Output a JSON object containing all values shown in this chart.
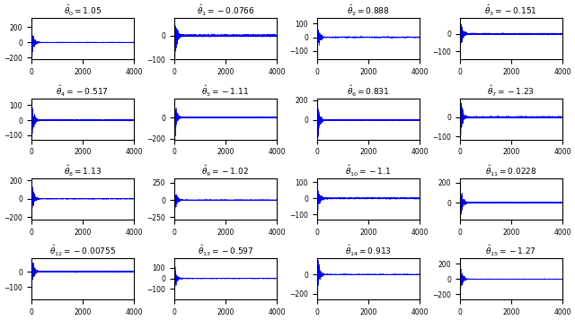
{
  "n_params": 16,
  "n_iter": 4000,
  "titles": [
    "\\hat{\\theta}_0 = 1.05",
    "\\hat{\\theta}_1 = -0.0766",
    "\\hat{\\theta}_2 = 0.888",
    "\\hat{\\theta}_3 = -0.151",
    "\\hat{\\theta}_4 = -0.517",
    "\\hat{\\theta}_5 = -1.11",
    "\\hat{\\theta}_6 = 0.831",
    "\\hat{\\theta}_7 = -1.23",
    "\\hat{\\theta}_8 = 1.13",
    "\\hat{\\theta}_9 = -1.02",
    "\\hat{\\theta}_{10} = -1.1",
    "\\hat{\\theta}_{11} = 0.0228",
    "\\hat{\\theta}_{12} = -0.00755",
    "\\hat{\\theta}_{13} = -0.597",
    "\\hat{\\theta}_{14} = 0.913",
    "\\hat{\\theta}_{15} = -1.27"
  ],
  "amplitudes": [
    120,
    60,
    70,
    65,
    80,
    110,
    130,
    65,
    130,
    120,
    65,
    110,
    65,
    70,
    110,
    120
  ],
  "line_color": "#0000ff",
  "line_width": 0.3,
  "n_rows": 4,
  "n_cols": 4,
  "seed": 12345,
  "decay_k": 80.0,
  "stationary_noise": 2.0
}
